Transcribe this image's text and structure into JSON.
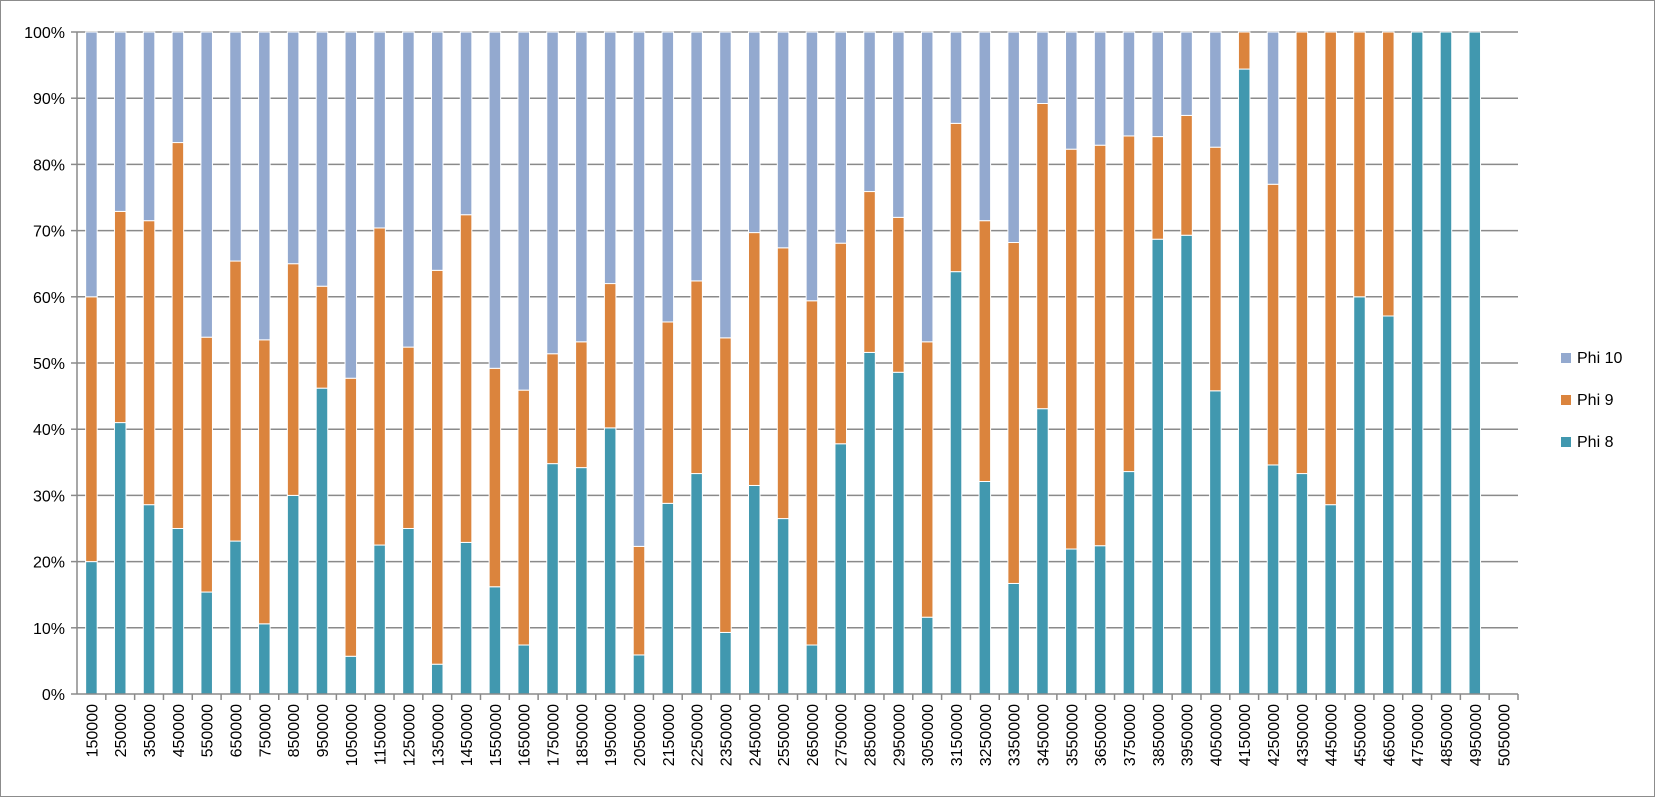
{
  "chart_data": {
    "type": "bar",
    "stacked": true,
    "percent": true,
    "title": "",
    "xlabel": "",
    "ylabel": "",
    "ylim": [
      0,
      100
    ],
    "grid": true,
    "legend_position": "right",
    "y_ticks": [
      "0%",
      "10%",
      "20%",
      "30%",
      "40%",
      "50%",
      "60%",
      "70%",
      "80%",
      "90%",
      "100%"
    ],
    "categories": [
      "150000",
      "250000",
      "350000",
      "450000",
      "550000",
      "650000",
      "750000",
      "850000",
      "950000",
      "1050000",
      "1150000",
      "1250000",
      "1350000",
      "1450000",
      "1550000",
      "1650000",
      "1750000",
      "1850000",
      "1950000",
      "2050000",
      "2150000",
      "2250000",
      "2350000",
      "2450000",
      "2550000",
      "2650000",
      "2750000",
      "2850000",
      "2950000",
      "3050000",
      "3150000",
      "3250000",
      "3350000",
      "3450000",
      "3550000",
      "3650000",
      "3750000",
      "3850000",
      "3950000",
      "4050000",
      "4150000",
      "4250000",
      "4350000",
      "4450000",
      "4550000",
      "4650000",
      "4750000",
      "4850000",
      "4950000",
      "5050000"
    ],
    "series": [
      {
        "name": "Phi 8",
        "color": "#4198af",
        "values": [
          20,
          41,
          28.6,
          25,
          15.4,
          23.1,
          10.6,
          30,
          46.2,
          5.7,
          22.5,
          25,
          4.5,
          22.9,
          16.2,
          7.4,
          34.8,
          34.2,
          40.2,
          5.9,
          28.8,
          33.3,
          9.3,
          31.5,
          26.5,
          7.4,
          37.8,
          51.6,
          48.6,
          11.6,
          63.8,
          32.1,
          16.7,
          43.1,
          21.9,
          22.4,
          33.6,
          68.7,
          69.3,
          45.8,
          94.4,
          34.6,
          33.3,
          28.6,
          60,
          57.1,
          100,
          100,
          100,
          0
        ]
      },
      {
        "name": "Phi 9",
        "color": "#db843d",
        "values": [
          40,
          31.9,
          42.9,
          58.3,
          38.5,
          42.3,
          42.9,
          35,
          15.4,
          42,
          47.9,
          27.4,
          59.5,
          49.5,
          33,
          38.5,
          16.6,
          19,
          21.8,
          16.4,
          27.4,
          29.1,
          44.5,
          38.2,
          40.9,
          52,
          30.3,
          24.3,
          23.4,
          41.6,
          22.4,
          39.4,
          51.5,
          46.1,
          60.4,
          60.5,
          50.7,
          15.5,
          18.1,
          36.8,
          5.6,
          42.4,
          66.7,
          71.4,
          40,
          42.9,
          0,
          0,
          0,
          0
        ]
      },
      {
        "name": "Phi 10",
        "color": "#93a9cf",
        "values": [
          40,
          27.1,
          28.5,
          16.7,
          46.1,
          34.6,
          46.5,
          35,
          38.4,
          52.3,
          29.6,
          47.6,
          36,
          27.6,
          50.8,
          54.1,
          48.6,
          46.8,
          38,
          77.7,
          43.8,
          37.6,
          46.2,
          30.3,
          32.6,
          40.6,
          31.9,
          24.1,
          28,
          46.8,
          13.8,
          28.5,
          31.8,
          10.8,
          17.7,
          17.1,
          15.7,
          15.8,
          12.6,
          17.4,
          0,
          23,
          0,
          0,
          0,
          0,
          0,
          0,
          0,
          0
        ]
      }
    ]
  }
}
